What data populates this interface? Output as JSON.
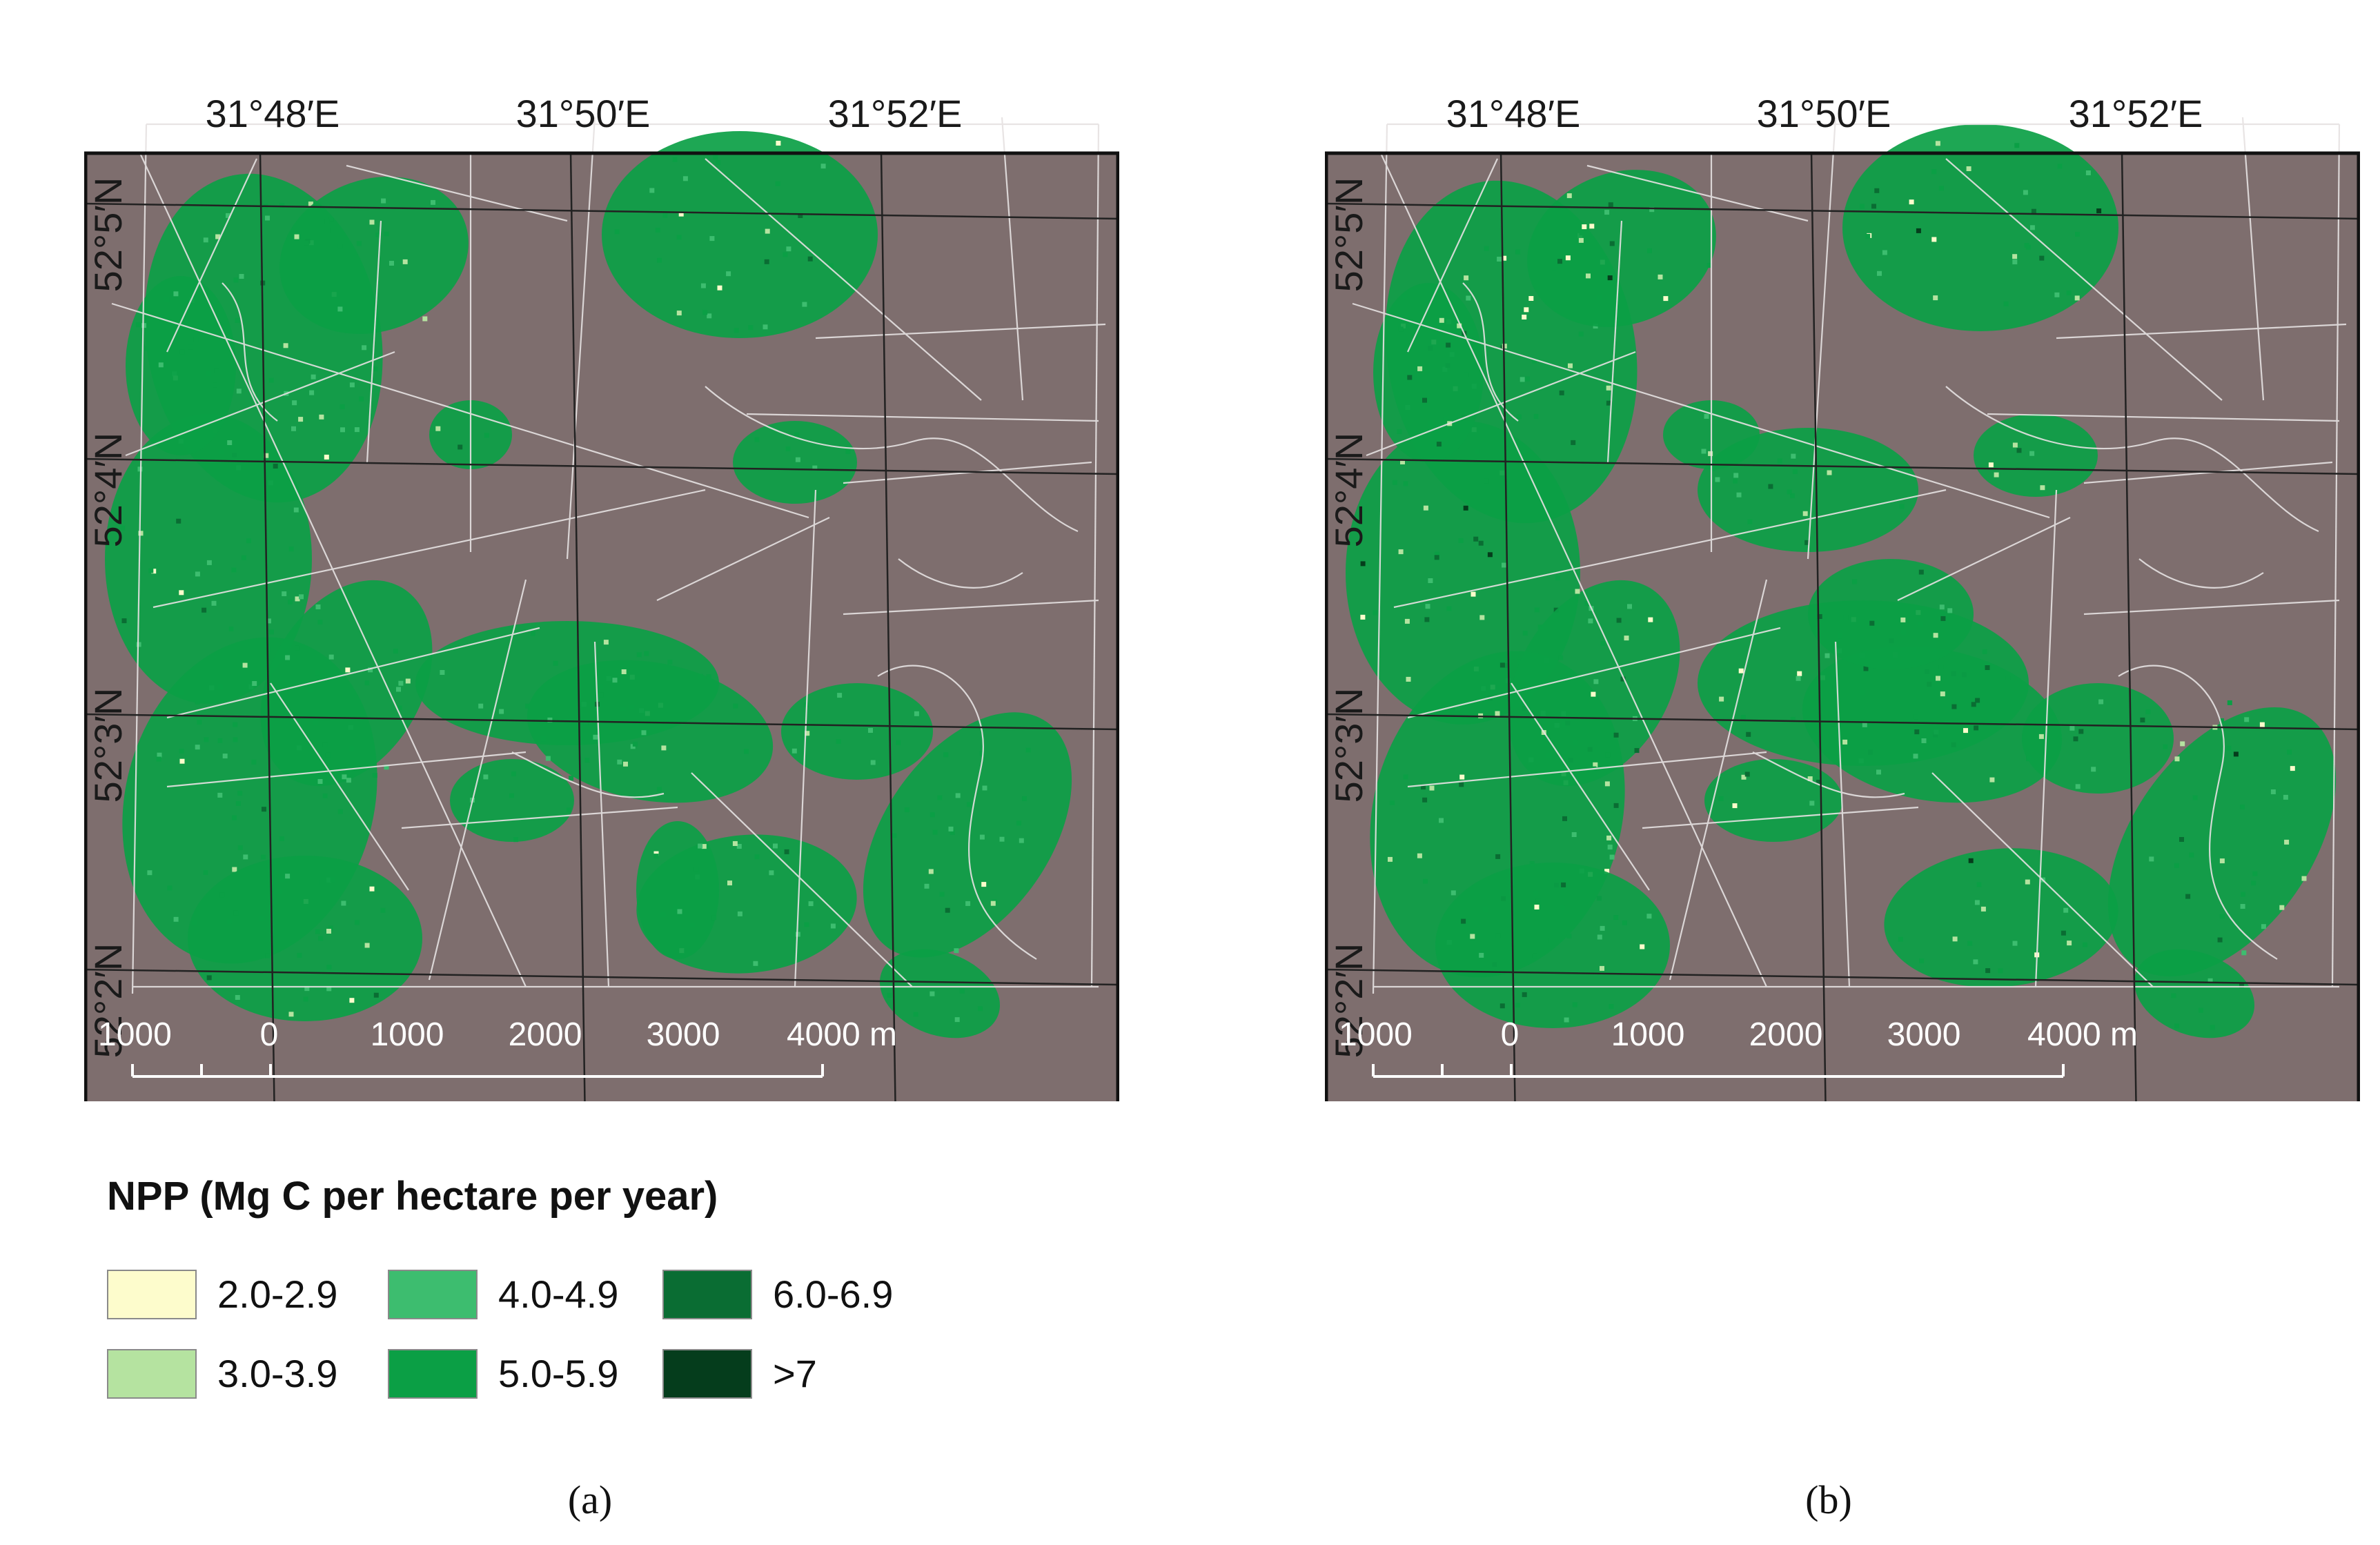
{
  "panels": [
    {
      "id": "a",
      "caption": "(a)",
      "lon_labels": [
        "31°48′E",
        "31°50′E",
        "31°52′E"
      ],
      "lat_labels": [
        "52°5′N",
        "52°4′N",
        "52°3′N",
        "52°2′N"
      ],
      "scale_bar": {
        "labels": [
          "1000",
          "0",
          "1000",
          "2000",
          "3000",
          "4000 m"
        ]
      }
    },
    {
      "id": "b",
      "caption": "(b)",
      "lon_labels": [
        "31°48′E",
        "31°50′E",
        "31°52′E"
      ],
      "lat_labels": [
        "52°5′N",
        "52°4′N",
        "52°3′N",
        "52°2′N"
      ],
      "scale_bar": {
        "labels": [
          "1000",
          "0",
          "1000",
          "2000",
          "3000",
          "4000 m"
        ]
      }
    }
  ],
  "legend": {
    "title": "NPP (Mg C per hectare per year)",
    "classes": [
      {
        "label": "2.0-2.9",
        "color": "#fdfccc"
      },
      {
        "label": "3.0-3.9",
        "color": "#b5e3a0"
      },
      {
        "label": "4.0-4.9",
        "color": "#3dbd6f"
      },
      {
        "label": "5.0-5.9",
        "color": "#0b9f45"
      },
      {
        "label": "6.0-6.9",
        "color": "#0a6d33"
      },
      {
        "label": ">7",
        "color": "#053d1c"
      }
    ]
  },
  "colors": {
    "background_land": "#7e6e6e",
    "parcel_lines": "#e6e2e2",
    "graticule": "#222222",
    "frame": "#111111"
  }
}
